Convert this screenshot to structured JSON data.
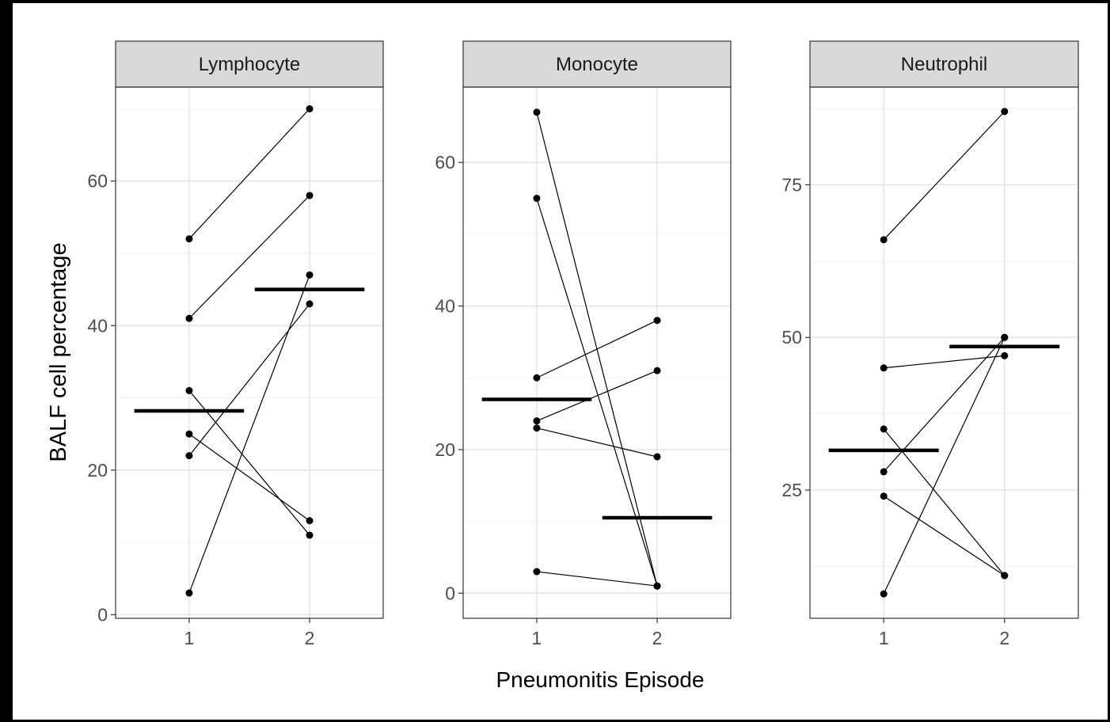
{
  "ylabel": "BALF cell percentage",
  "xlabel": "Pneumonitis Episode",
  "chart_data": [
    {
      "type": "scatter",
      "title": "Lymphocyte",
      "x_categories": [
        "1",
        "2"
      ],
      "ylim": [
        -0.5,
        73
      ],
      "y_ticks": [
        0,
        20,
        40,
        60
      ],
      "minor_ticks": [
        10,
        30,
        50,
        70
      ],
      "pairs": [
        [
          52,
          70
        ],
        [
          41,
          58
        ],
        [
          31,
          11
        ],
        [
          25,
          13
        ],
        [
          22,
          43
        ],
        [
          3,
          47
        ]
      ],
      "means": [
        28.2,
        45
      ]
    },
    {
      "type": "scatter",
      "title": "Monocyte",
      "x_categories": [
        "1",
        "2"
      ],
      "ylim": [
        -3.5,
        70.5
      ],
      "y_ticks": [
        0,
        20,
        40,
        60
      ],
      "minor_ticks": [
        10,
        30,
        50
      ],
      "pairs": [
        [
          67,
          1
        ],
        [
          55,
          1
        ],
        [
          30,
          38
        ],
        [
          24,
          31
        ],
        [
          23,
          19
        ],
        [
          3,
          1
        ]
      ],
      "means": [
        27,
        10.5
      ]
    },
    {
      "type": "scatter",
      "title": "Neutrophil",
      "x_categories": [
        "1",
        "2"
      ],
      "ylim": [
        4,
        91
      ],
      "y_ticks": [
        25,
        50,
        75
      ],
      "minor_ticks": [
        12.5,
        37.5,
        62.5,
        87.5
      ],
      "pairs": [
        [
          66,
          87
        ],
        [
          45,
          47
        ],
        [
          35,
          11
        ],
        [
          28,
          50
        ],
        [
          24,
          11
        ],
        [
          8,
          50
        ]
      ],
      "means": [
        31.5,
        48.5
      ]
    }
  ]
}
